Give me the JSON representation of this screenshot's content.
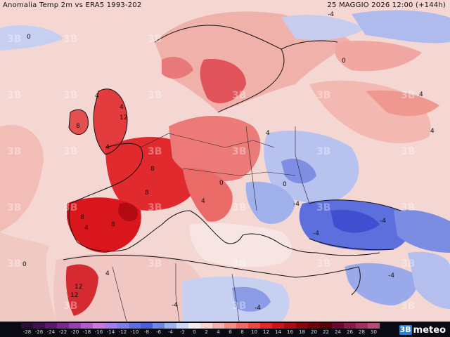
{
  "header": {
    "title_left": "Anomalia Temp 2m vs ERA5 1993-202",
    "title_right": "25 MAGGIO 2026 12:00 (+144h)"
  },
  "map": {
    "description_type": "temperature-anomaly-map",
    "labels": [
      {
        "text": "0"
      },
      {
        "text": "4"
      },
      {
        "text": "8"
      },
      {
        "text": "4"
      },
      {
        "text": "12"
      },
      {
        "text": "4"
      },
      {
        "text": "8"
      },
      {
        "text": "8"
      },
      {
        "text": "8"
      },
      {
        "text": "4"
      },
      {
        "text": "8"
      },
      {
        "text": "4"
      },
      {
        "text": "4"
      },
      {
        "text": "0"
      },
      {
        "text": "-4"
      },
      {
        "text": "-4"
      },
      {
        "text": "-4"
      },
      {
        "text": "4"
      },
      {
        "text": "12"
      },
      {
        "text": "12"
      },
      {
        "text": "-4"
      },
      {
        "text": "-4"
      },
      {
        "text": "0"
      },
      {
        "text": "4"
      },
      {
        "text": "0"
      },
      {
        "text": "-4"
      },
      {
        "text": "4"
      },
      {
        "text": "0"
      },
      {
        "text": "-4"
      }
    ]
  },
  "legend": {
    "ticks": [
      "-28",
      "-26",
      "-24",
      "-22",
      "-20",
      "-18",
      "-16",
      "-14",
      "-12",
      "-10",
      "-8",
      "-6",
      "-4",
      "-2",
      "0",
      "2",
      "4",
      "6",
      "8",
      "10",
      "12",
      "14",
      "16",
      "18",
      "20",
      "22",
      "24",
      "26",
      "28",
      "30"
    ],
    "colors": [
      "#2a0f36",
      "#40124f",
      "#5b1a6e",
      "#7a2a8e",
      "#9a3fb0",
      "#b35ccc",
      "#c87ad8",
      "#a57ee8",
      "#7f7fe6",
      "#5f6fe0",
      "#4a5fd8",
      "#6f87e0",
      "#9db3ec",
      "#cfd8f4",
      "#f3ecec",
      "#f6d6d2",
      "#f3b3ac",
      "#ef8e87",
      "#ec6a65",
      "#e84a48",
      "#e0292d",
      "#c9161c",
      "#aa0d13",
      "#8a060c",
      "#6d0208",
      "#560005",
      "#6a0a2b",
      "#8a1a4a",
      "#a0305e",
      "#b84a74"
    ],
    "brand": "3Bmeteo",
    "brand_mark": "3B"
  }
}
